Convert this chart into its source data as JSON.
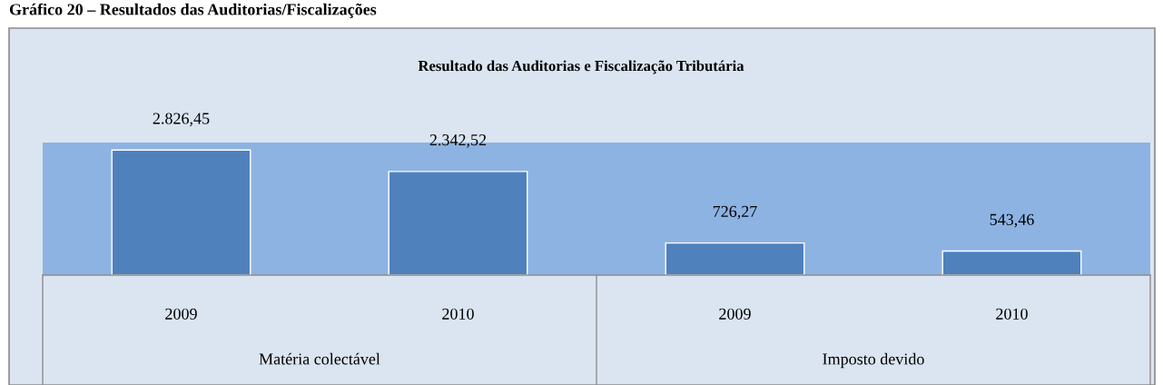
{
  "chart_data": {
    "type": "bar",
    "title": "Resultado das Auditorias e Fiscalização Tributária",
    "categories": [
      "2009",
      "2010",
      "2009",
      "2010"
    ],
    "values": [
      2826.45,
      2342.52,
      726.27,
      543.46
    ],
    "value_labels": [
      "2.826,45",
      "2.342,52",
      "726,27",
      "543,46"
    ],
    "color": "#4f81bd",
    "annotations": [
      "Gráfico 20 – Resultados das Auditorias/Fiscalizações",
      "Matéria colectável",
      "Imposto devido"
    ],
    "legend": false
  }
}
